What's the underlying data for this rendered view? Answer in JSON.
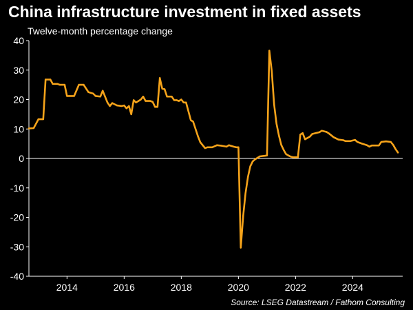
{
  "chart_data": {
    "type": "line",
    "title": "China infrastructure investment in fixed assets",
    "subtitle": "Twelve-month percentage change",
    "source": "Source: LSEG Datastream / Fathom Consulting",
    "xlabel": "",
    "ylabel": "",
    "ylim": [
      -40,
      40
    ],
    "xlim": [
      "2012-09",
      "2025-10"
    ],
    "y_ticks": [
      -40,
      -30,
      -20,
      -10,
      0,
      10,
      20,
      30,
      40
    ],
    "x_ticks": [
      "2014",
      "2016",
      "2018",
      "2020",
      "2022",
      "2024"
    ],
    "grid": false,
    "zero_line": true,
    "line_color": "#f5a31a",
    "series": [
      {
        "points": [
          [
            "2012-09",
            10.2
          ],
          [
            "2012-11",
            10.3
          ],
          [
            "2013-01",
            13.3
          ],
          [
            "2013-03",
            13.3
          ],
          [
            "2013-04",
            26.8
          ],
          [
            "2013-06",
            26.8
          ],
          [
            "2013-07",
            25.3
          ],
          [
            "2013-09",
            25.3
          ],
          [
            "2013-10",
            25.0
          ],
          [
            "2013-12",
            25.0
          ],
          [
            "2014-01",
            21.2
          ],
          [
            "2014-02",
            21.2
          ],
          [
            "2014-04",
            21.2
          ],
          [
            "2014-06",
            25.0
          ],
          [
            "2014-08",
            25.0
          ],
          [
            "2014-10",
            22.5
          ],
          [
            "2014-12",
            22.0
          ],
          [
            "2015-01",
            21.2
          ],
          [
            "2015-03",
            21.0
          ],
          [
            "2015-04",
            23.0
          ],
          [
            "2015-06",
            19.0
          ],
          [
            "2015-07",
            17.8
          ],
          [
            "2015-08",
            18.8
          ],
          [
            "2015-10",
            18.0
          ],
          [
            "2015-12",
            17.8
          ],
          [
            "2016-01",
            18.0
          ],
          [
            "2016-02",
            17.0
          ],
          [
            "2016-03",
            17.8
          ],
          [
            "2016-04",
            15.0
          ],
          [
            "2016-05",
            19.8
          ],
          [
            "2016-06",
            19.0
          ],
          [
            "2016-08",
            20.0
          ],
          [
            "2016-09",
            21.0
          ],
          [
            "2016-10",
            19.5
          ],
          [
            "2016-12",
            19.5
          ],
          [
            "2017-01",
            19.2
          ],
          [
            "2017-02",
            17.5
          ],
          [
            "2017-03",
            17.5
          ],
          [
            "2017-04",
            27.3
          ],
          [
            "2017-05",
            23.7
          ],
          [
            "2017-06",
            23.5
          ],
          [
            "2017-07",
            21.0
          ],
          [
            "2017-08",
            21.0
          ],
          [
            "2017-09",
            21.0
          ],
          [
            "2017-10",
            19.8
          ],
          [
            "2017-11",
            19.8
          ],
          [
            "2017-12",
            19.5
          ],
          [
            "2018-01",
            20.0
          ],
          [
            "2018-02",
            19.0
          ],
          [
            "2018-03",
            19.0
          ],
          [
            "2018-05",
            13.0
          ],
          [
            "2018-06",
            12.5
          ],
          [
            "2018-08",
            7.5
          ],
          [
            "2018-09",
            5.5
          ],
          [
            "2018-11",
            3.5
          ],
          [
            "2018-12",
            3.8
          ],
          [
            "2019-02",
            3.8
          ],
          [
            "2019-04",
            4.5
          ],
          [
            "2019-06",
            4.3
          ],
          [
            "2019-08",
            4.0
          ],
          [
            "2019-09",
            4.5
          ],
          [
            "2019-11",
            4.0
          ],
          [
            "2019-12",
            3.8
          ],
          [
            "2020-01",
            3.8
          ],
          [
            "2020-02",
            -30.3
          ],
          [
            "2020-03",
            -19.5
          ],
          [
            "2020-04",
            -11.8
          ],
          [
            "2020-05",
            -6.3
          ],
          [
            "2020-06",
            -2.7
          ],
          [
            "2020-07",
            -1.0
          ],
          [
            "2020-08",
            -0.3
          ],
          [
            "2020-09",
            0.2
          ],
          [
            "2020-10",
            0.7
          ],
          [
            "2020-12",
            0.9
          ],
          [
            "2021-01",
            1.0
          ],
          [
            "2021-02",
            36.6
          ],
          [
            "2021-03",
            29.7
          ],
          [
            "2021-04",
            18.4
          ],
          [
            "2021-05",
            11.8
          ],
          [
            "2021-06",
            7.8
          ],
          [
            "2021-07",
            4.6
          ],
          [
            "2021-08",
            2.9
          ],
          [
            "2021-09",
            1.5
          ],
          [
            "2021-10",
            1.0
          ],
          [
            "2021-11",
            0.6
          ],
          [
            "2021-12",
            0.4
          ],
          [
            "2022-02",
            0.4
          ],
          [
            "2022-03",
            8.1
          ],
          [
            "2022-04",
            8.6
          ],
          [
            "2022-05",
            6.5
          ],
          [
            "2022-07",
            7.4
          ],
          [
            "2022-08",
            8.3
          ],
          [
            "2022-10",
            8.7
          ],
          [
            "2022-11",
            8.9
          ],
          [
            "2022-12",
            9.4
          ],
          [
            "2023-02",
            9.0
          ],
          [
            "2023-03",
            8.5
          ],
          [
            "2023-05",
            7.2
          ],
          [
            "2023-07",
            6.4
          ],
          [
            "2023-09",
            6.2
          ],
          [
            "2023-10",
            5.9
          ],
          [
            "2023-12",
            5.9
          ],
          [
            "2024-02",
            6.3
          ],
          [
            "2024-03",
            5.6
          ],
          [
            "2024-05",
            5.0
          ],
          [
            "2024-07",
            4.5
          ],
          [
            "2024-08",
            4.0
          ],
          [
            "2024-09",
            4.4
          ],
          [
            "2024-11",
            4.4
          ],
          [
            "2024-12",
            4.4
          ],
          [
            "2025-01",
            5.6
          ],
          [
            "2025-03",
            5.8
          ],
          [
            "2025-05",
            5.6
          ],
          [
            "2025-06",
            4.6
          ],
          [
            "2025-07",
            3.2
          ],
          [
            "2025-08",
            2.0
          ]
        ]
      }
    ]
  }
}
